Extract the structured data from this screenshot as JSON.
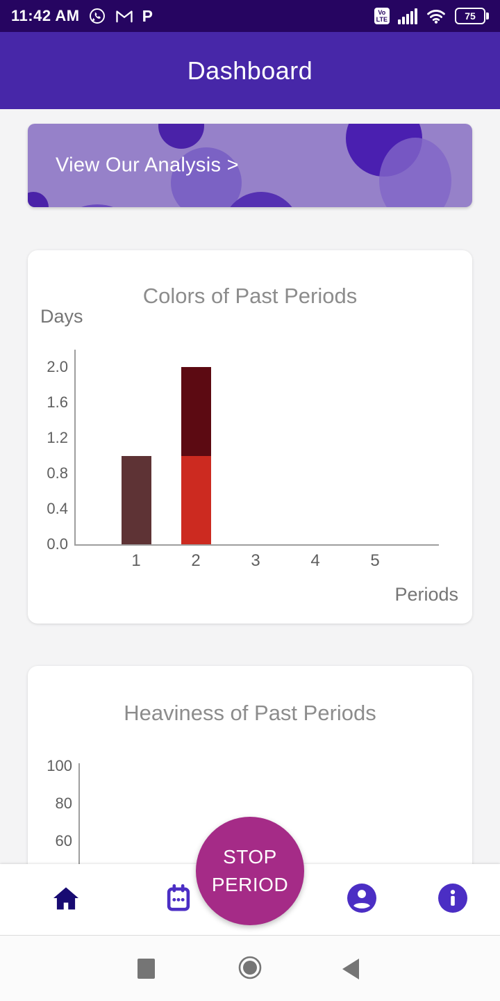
{
  "status_bar": {
    "time": "11:42 AM",
    "volte_line1": "Vo",
    "volte_line2": "LTE",
    "battery_percent": "75",
    "p_app_glyph": "P",
    "icons": [
      "whatsapp-icon",
      "gmail-icon",
      "p-app-icon",
      "volte-badge",
      "signal-icon",
      "wifi-icon",
      "battery-icon"
    ]
  },
  "app_bar": {
    "title": "Dashboard"
  },
  "banner": {
    "label": "View Our Analysis >",
    "background_color": "#9681C9",
    "bubble_colors": [
      "#4A22A8",
      "#7B62C4",
      "#6A4ABE",
      "#5531B2",
      "#4A1FB0",
      "#8165C8"
    ]
  },
  "chart_data": [
    {
      "type": "bar",
      "stacked": true,
      "title": "Colors of Past Periods",
      "ylabel": "Days",
      "xlabel": "Periods",
      "categories": [
        "1",
        "2",
        "3",
        "4",
        "5"
      ],
      "y_ticks": [
        "2.0",
        "1.6",
        "1.2",
        "0.8",
        "0.4",
        "0.0"
      ],
      "ylim": [
        0,
        2.2
      ],
      "grid": false,
      "legend": "none",
      "bars": [
        {
          "category": "1",
          "segments": [
            {
              "value": 1.0,
              "color": "#5E3335"
            }
          ]
        },
        {
          "category": "2",
          "segments": [
            {
              "value": 1.0,
              "color": "#CC2A20"
            },
            {
              "value": 1.0,
              "color": "#5C0A12"
            }
          ]
        },
        {
          "category": "3",
          "segments": []
        },
        {
          "category": "4",
          "segments": []
        },
        {
          "category": "5",
          "segments": []
        }
      ]
    },
    {
      "type": "bar",
      "title": "Heaviness of Past Periods",
      "y_ticks": [
        "100",
        "80",
        "60"
      ],
      "grid": false,
      "bars": []
    }
  ],
  "fab": {
    "line1": "STOP",
    "line2": "PERIOD",
    "color": "#A52B87"
  },
  "bottom_nav": {
    "items": [
      {
        "id": "home",
        "icon": "home-icon",
        "active": true,
        "color": "#180B72"
      },
      {
        "id": "calendar",
        "icon": "calendar-icon",
        "active": false,
        "color": "#4B2EC4"
      },
      {
        "id": "profile",
        "icon": "profile-icon",
        "active": false,
        "color": "#4B2EC4"
      },
      {
        "id": "info",
        "icon": "info-icon",
        "active": false,
        "color": "#4B2EC4"
      }
    ]
  },
  "android_nav": {
    "items": [
      {
        "id": "recents",
        "icon": "square-icon"
      },
      {
        "id": "home",
        "icon": "circle-icon"
      },
      {
        "id": "back",
        "icon": "back-triangle-icon"
      }
    ]
  },
  "colors": {
    "status_bar_bg": "#260561",
    "app_bar_bg": "#4727A8",
    "page_bg": "#F4F4F5",
    "card_bg": "#FFFFFF",
    "chart_title": "#8C8C8C",
    "axis": "#9E9E9E"
  }
}
